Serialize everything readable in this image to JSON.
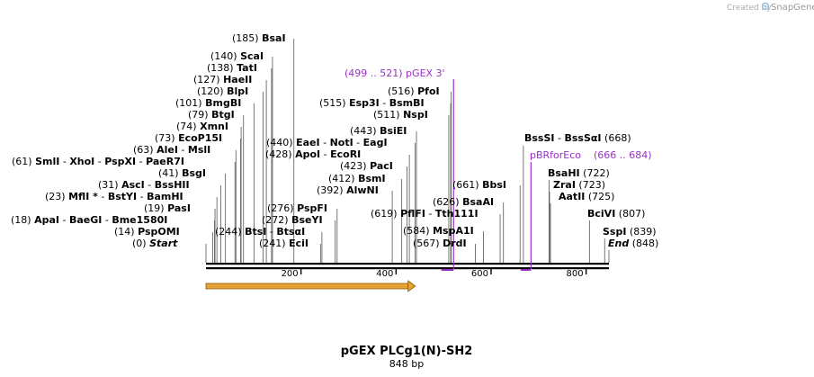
{
  "credit": {
    "prefix": "Created by",
    "brand": "SnapGene",
    "logo_icon": "snapgene-logo-icon"
  },
  "plasmid": {
    "name": "pGEX PLCg1(N)-SH2",
    "length_label": "848 bp",
    "length": 848
  },
  "ruler": {
    "ticks": [
      {
        "pos": 200,
        "label": "200"
      },
      {
        "pos": 400,
        "label": "400"
      },
      {
        "pos": 600,
        "label": "600"
      },
      {
        "pos": 800,
        "label": "800"
      }
    ]
  },
  "feature": {
    "name": "orf-arrow",
    "start": 0,
    "end": 448,
    "color": "#e6a233",
    "direction": "forward"
  },
  "primers": [
    {
      "id": "pgex3",
      "label": "(499 .. 521)  pGEX 3'",
      "start": 499,
      "end": 521,
      "color": "#9b30c8",
      "direction": "reverse"
    },
    {
      "id": "pbrforeco",
      "name": "pBRforEco",
      "range": "(666 .. 684)",
      "start": 666,
      "end": 684,
      "color": "#9b30c8",
      "direction": "reverse"
    }
  ],
  "left_sites": [
    {
      "pos": 185,
      "pos_label": "(185)",
      "names": [
        "BsaI"
      ]
    },
    {
      "pos": 140,
      "pos_label": "(140)",
      "names": [
        "ScaI"
      ]
    },
    {
      "pos": 138,
      "pos_label": "(138)",
      "names": [
        "TatI"
      ]
    },
    {
      "pos": 127,
      "pos_label": "(127)",
      "names": [
        "HaeII"
      ]
    },
    {
      "pos": 120,
      "pos_label": "(120)",
      "names": [
        "BlpI"
      ]
    },
    {
      "pos": 101,
      "pos_label": "(101)",
      "names": [
        "BmgBI"
      ]
    },
    {
      "pos": 79,
      "pos_label": "(79)",
      "names": [
        "BtgI"
      ]
    },
    {
      "pos": 74,
      "pos_label": "(74)",
      "names": [
        "XmnI"
      ]
    },
    {
      "pos": 73,
      "pos_label": "(73)",
      "names": [
        "EcoP15I"
      ]
    },
    {
      "pos": 63,
      "pos_label": "(63)",
      "names": [
        "AleI",
        "MslI"
      ]
    },
    {
      "pos": 61,
      "pos_label": "(61)",
      "names": [
        "SmlI",
        "XhoI",
        "PspXI",
        "PaeR7I"
      ]
    },
    {
      "pos": 41,
      "pos_label": "(41)",
      "names": [
        "BsgI"
      ]
    },
    {
      "pos": 31,
      "pos_label": "(31)",
      "names": [
        "AscI",
        "BssHII"
      ]
    },
    {
      "pos": 23,
      "pos_label": "(23)",
      "names": [
        "MflI *",
        "BstYI",
        "BamHI"
      ]
    },
    {
      "pos": 19,
      "pos_label": "(19)",
      "names": [
        "PasI"
      ]
    },
    {
      "pos": 18,
      "pos_label": "(18)",
      "names": [
        "ApaI",
        "BaeGI",
        "Bme1580I"
      ]
    },
    {
      "pos": 14,
      "pos_label": "(14)",
      "names": [
        "PspOMI"
      ]
    },
    {
      "pos": 0,
      "pos_label": "(0)",
      "names": [
        "Start"
      ]
    }
  ],
  "mid_sites": [
    {
      "pos": 244,
      "pos_label": "(244)",
      "names": [
        "BtsI",
        "BtsαI"
      ]
    },
    {
      "pos": 241,
      "pos_label": "(241)",
      "names": [
        "EciI"
      ]
    },
    {
      "pos": 272,
      "pos_label": "(272)",
      "names": [
        "BseYI"
      ]
    },
    {
      "pos": 276,
      "pos_label": "(276)",
      "names": [
        "PspFI"
      ]
    },
    {
      "pos": 440,
      "pos_label": "(440)",
      "names": [
        "EaeI",
        "NotI",
        "EagI"
      ]
    },
    {
      "pos": 428,
      "pos_label": "(428)",
      "names": [
        "ApoI",
        "EcoRI"
      ]
    },
    {
      "pos": 423,
      "pos_label": "(423)",
      "names": [
        "PacI"
      ]
    },
    {
      "pos": 412,
      "pos_label": "(412)",
      "names": [
        "BsmI"
      ]
    },
    {
      "pos": 392,
      "pos_label": "(392)",
      "names": [
        "AlwNI"
      ]
    },
    {
      "pos": 443,
      "pos_label": "(443)",
      "names": [
        "BsiEI"
      ]
    },
    {
      "pos": 516,
      "pos_label": "(516)",
      "names": [
        "PfoI"
      ]
    },
    {
      "pos": 515,
      "pos_label": "(515)",
      "names": [
        "Esp3I",
        "BsmBI"
      ]
    },
    {
      "pos": 511,
      "pos_label": "(511)",
      "names": [
        "NspI"
      ]
    },
    {
      "pos": 619,
      "pos_label": "(619)",
      "names": [
        "PflFI",
        "Tth111I"
      ]
    },
    {
      "pos": 584,
      "pos_label": "(584)",
      "names": [
        "MspA1I"
      ]
    },
    {
      "pos": 567,
      "pos_label": "(567)",
      "names": [
        "DrdI"
      ]
    },
    {
      "pos": 626,
      "pos_label": "(626)",
      "names": [
        "BsaAI"
      ]
    },
    {
      "pos": 661,
      "pos_label": "(661)",
      "names": [
        "BbsI"
      ]
    }
  ],
  "right_sites": [
    {
      "pos": 668,
      "pos_label": "(668)",
      "names": [
        "BssSI",
        "BssSαI"
      ]
    },
    {
      "pos": 722,
      "pos_label": "(722)",
      "names": [
        "BsaHI"
      ]
    },
    {
      "pos": 723,
      "pos_label": "(723)",
      "names": [
        "ZraI"
      ]
    },
    {
      "pos": 725,
      "pos_label": "(725)",
      "names": [
        "AatII"
      ]
    },
    {
      "pos": 807,
      "pos_label": "(807)",
      "names": [
        "BciVI"
      ]
    },
    {
      "pos": 839,
      "pos_label": "(839)",
      "names": [
        "SspI"
      ]
    },
    {
      "pos": 848,
      "pos_label": "(848)",
      "names": [
        "End"
      ]
    }
  ]
}
